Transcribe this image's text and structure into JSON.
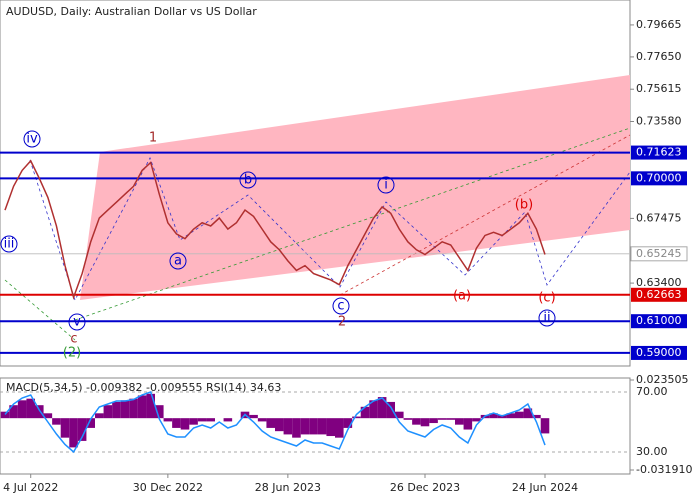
{
  "chart_data": [
    {
      "type": "line",
      "title": "AUDUSD, Daily:  Australian Dollar vs US Dollar",
      "categories": [
        null,
        null,
        null,
        "4 Jul 2022",
        null,
        null,
        null,
        null,
        null,
        null,
        null,
        null,
        null,
        null,
        null,
        null,
        null,
        null,
        null,
        "30 Dec 2022",
        null,
        null,
        null,
        null,
        null,
        null,
        null,
        null,
        null,
        null,
        null,
        null,
        null,
        "28 Jun 2023",
        null,
        null,
        null,
        null,
        null,
        null,
        null,
        null,
        null,
        null,
        null,
        null,
        null,
        null,
        null,
        "26 Dec 2023",
        null,
        null,
        null,
        null,
        null,
        null,
        null,
        null,
        null,
        null,
        null,
        null,
        null,
        "24 Jun 2024"
      ],
      "series": [
        {
          "name": "AUDUSD",
          "color": "#b03030",
          "values": [
            0.68,
            0.695,
            0.705,
            0.711,
            0.7,
            0.688,
            0.67,
            0.645,
            0.625,
            0.64,
            0.66,
            0.675,
            0.68,
            0.685,
            0.69,
            0.695,
            0.705,
            0.71,
            0.69,
            0.672,
            0.665,
            0.662,
            0.668,
            0.672,
            0.67,
            0.675,
            0.668,
            0.672,
            0.68,
            0.676,
            0.668,
            0.66,
            0.655,
            0.648,
            0.642,
            0.645,
            0.64,
            0.638,
            0.636,
            0.633,
            0.645,
            0.655,
            0.665,
            0.675,
            0.682,
            0.678,
            0.668,
            0.66,
            0.655,
            0.652,
            0.656,
            0.66,
            0.658,
            0.65,
            0.642,
            0.656,
            0.664,
            0.666,
            0.664,
            0.668,
            0.672,
            0.678,
            0.668,
            0.652
          ]
        }
      ],
      "ylim": [
        0.5824,
        0.8092
      ],
      "yticks": [
        0.79665,
        {
          "value": 0.7765,
          "label": "0.77650"
        },
        0.75615,
        {
          "value": 0.7358,
          "label": "0.73580"
        },
        0.67475,
        {
          "value": 0.634,
          "label": "0.63400"
        }
      ],
      "levels": {
        "values": [
          0.71623,
          0.7,
          0.62663,
          0.61,
          0.59
        ],
        "value_labels": [
          "0.71623",
          "0.70000",
          "0.62663",
          "0.61000",
          "0.59000"
        ],
        "colors": [
          "#0000cc",
          "#0000cc",
          "#dd0000",
          "#0000cc",
          "#0000cc"
        ]
      },
      "last_price": 0.65245,
      "annotations": [
        {
          "text": "iv",
          "color": "#0000cc"
        },
        {
          "text": "iii",
          "color": "#0000cc"
        },
        {
          "text": "v",
          "color": "#0000cc"
        },
        {
          "text": "c",
          "color": "#a52a2a"
        },
        {
          "text": "(2)",
          "color": "#339933"
        },
        {
          "text": "1",
          "color": "#a52a2a"
        },
        {
          "text": "a",
          "color": "#0000cc"
        },
        {
          "text": "b",
          "color": "#0000cc"
        },
        {
          "text": "c",
          "color": "#0000cc"
        },
        {
          "text": "2",
          "color": "#a52a2a"
        },
        {
          "text": "i",
          "color": "#0000cc"
        },
        {
          "text": "(a)",
          "color": "#dd0000"
        },
        {
          "text": "(b)",
          "color": "#dd0000"
        },
        {
          "text": "(c)",
          "color": "#dd0000"
        },
        {
          "text": "ii",
          "color": "#0000cc"
        }
      ]
    },
    {
      "type": "macd",
      "title": "MACD(5,34,5) -0.009382 -0.009555 RSI(14) 34.63",
      "series": [
        {
          "name": "MACD",
          "color": "#800080",
          "values": [
            0.004,
            0.008,
            0.011,
            0.012,
            0.008,
            0.003,
            -0.004,
            -0.012,
            -0.018,
            -0.014,
            -0.006,
            0.003,
            0.008,
            0.01,
            0.011,
            0.012,
            0.014,
            0.015,
            0.008,
            -0.002,
            -0.006,
            -0.007,
            -0.004,
            -0.002,
            -0.002,
            0.0,
            -0.002,
            0.0,
            0.004,
            0.002,
            -0.002,
            -0.006,
            -0.008,
            -0.01,
            -0.012,
            -0.01,
            -0.01,
            -0.01,
            -0.011,
            -0.012,
            -0.006,
            0.001,
            0.007,
            0.011,
            0.013,
            0.01,
            0.004,
            -0.001,
            -0.004,
            -0.005,
            -0.003,
            -0.001,
            -0.001,
            -0.004,
            -0.007,
            -0.002,
            0.002,
            0.003,
            0.002,
            0.003,
            0.004,
            0.006,
            0.002,
            -0.009382
          ]
        },
        {
          "name": "RSI(14)",
          "color": "#1e90ff",
          "axis": "y2",
          "values": [
            55,
            62,
            66,
            68,
            58,
            50,
            42,
            35,
            30,
            40,
            52,
            60,
            62,
            64,
            64,
            65,
            68,
            70,
            52,
            42,
            40,
            40,
            46,
            48,
            46,
            50,
            46,
            48,
            55,
            50,
            44,
            40,
            38,
            36,
            34,
            38,
            36,
            36,
            34,
            32,
            45,
            55,
            60,
            64,
            66,
            60,
            50,
            44,
            42,
            40,
            45,
            48,
            46,
            40,
            36,
            48,
            54,
            56,
            54,
            56,
            58,
            62,
            50,
            34.63
          ]
        }
      ],
      "ylim": [
        -0.03191,
        0.023505
      ],
      "yticks": [
        0.023505,
        {
          "value": -0.03191,
          "label": "-0.031910"
        }
      ],
      "y2lim": [
        18,
        78
      ],
      "y2ticks": [
        {
          "value": 70,
          "label": "70.00"
        },
        {
          "value": 30,
          "label": "30.00"
        }
      ]
    }
  ]
}
